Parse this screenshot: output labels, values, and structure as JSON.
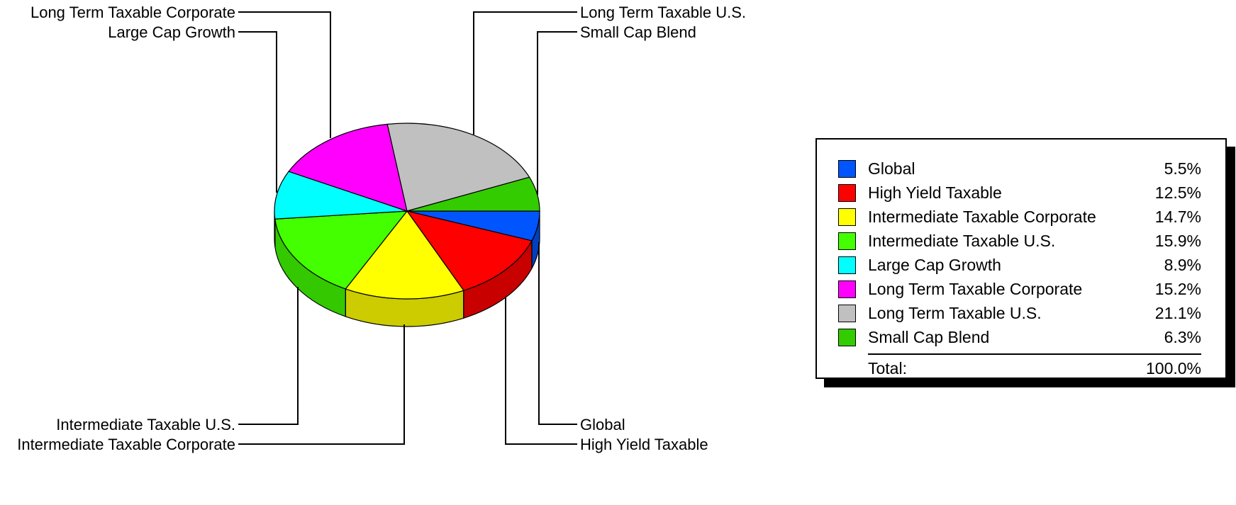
{
  "chart_data": {
    "type": "pie",
    "title": "",
    "slices": [
      {
        "label": "Global",
        "value": 5.5,
        "display": "5.5%",
        "color": "#0055ff",
        "side_color": "#003fc0"
      },
      {
        "label": "High Yield Taxable",
        "value": 12.5,
        "display": "12.5%",
        "color": "#ff0000",
        "side_color": "#c80000"
      },
      {
        "label": "Intermediate Taxable Corporate",
        "value": 14.7,
        "display": "14.7%",
        "color": "#ffff00",
        "side_color": "#cccc00"
      },
      {
        "label": "Intermediate Taxable U.S.",
        "value": 15.9,
        "display": "15.9%",
        "color": "#44ff00",
        "side_color": "#33c800"
      },
      {
        "label": "Large Cap Growth",
        "value": 8.9,
        "display": "8.9%",
        "color": "#00ffff",
        "side_color": "#00c8c8"
      },
      {
        "label": "Long Term Taxable Corporate",
        "value": 15.2,
        "display": "15.2%",
        "color": "#ff00ff",
        "side_color": "#c800c8"
      },
      {
        "label": "Long Term Taxable U.S.",
        "value": 21.1,
        "display": "21.1%",
        "color": "#c0c0c0",
        "side_color": "#969696"
      },
      {
        "label": "Small Cap Blend",
        "value": 6.3,
        "display": "6.3%",
        "color": "#33cc00",
        "side_color": "#26a000"
      }
    ],
    "legend": {
      "placement": "right",
      "total_label": "Total:",
      "total_value": "100.0%"
    }
  }
}
